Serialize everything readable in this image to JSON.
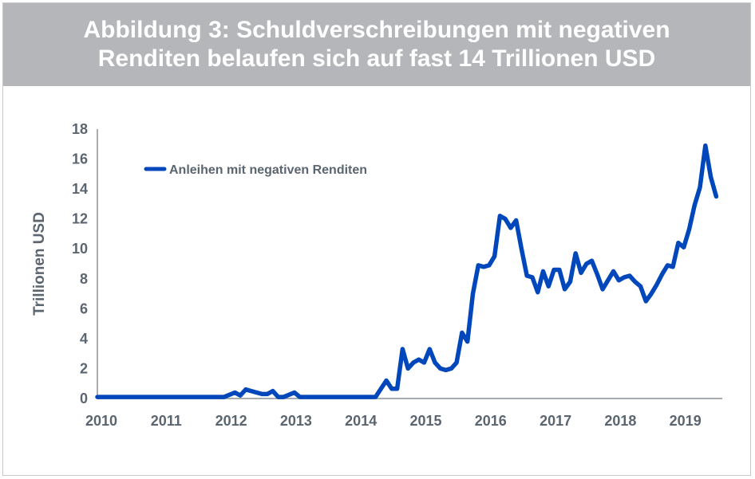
{
  "header": {
    "line1": "Abbildung 3: Schuldverschreibungen mit negativen",
    "line2": "Renditen belaufen sich auf fast 14 Trillionen USD"
  },
  "colors": {
    "line": "#0047bb",
    "header_bg": "#b4b6b9",
    "axis": "#8a9097",
    "text": "#5b6570"
  },
  "chart_data": {
    "type": "line",
    "title": "Abbildung 3: Schuldverschreibungen mit negativen Renditen belaufen sich auf fast 14 Trillionen USD",
    "xlabel": "",
    "ylabel": "Trillionen USD",
    "ylim": [
      0,
      18
    ],
    "yticks": [
      "0",
      "2",
      "4",
      "6",
      "8",
      "10",
      "12",
      "14",
      "16",
      "18"
    ],
    "xlim": [
      "2010-01",
      "2019-12"
    ],
    "xticks": [
      "2010",
      "2011",
      "2012",
      "2013",
      "2014",
      "2015",
      "2016",
      "2017",
      "2018",
      "2019"
    ],
    "grid": false,
    "legend": "top-left",
    "series": [
      {
        "name": "Anleihen mit negativen Renditen",
        "points": [
          [
            "2010-01",
            0.1
          ],
          [
            "2011-12",
            0.1
          ],
          [
            "2012-02",
            0.4
          ],
          [
            "2012-03",
            0.2
          ],
          [
            "2012-04",
            0.6
          ],
          [
            "2012-05",
            0.5
          ],
          [
            "2012-07",
            0.3
          ],
          [
            "2012-08",
            0.3
          ],
          [
            "2012-09",
            0.5
          ],
          [
            "2012-10",
            0.1
          ],
          [
            "2012-11",
            0.1
          ],
          [
            "2013-01",
            0.4
          ],
          [
            "2013-02",
            0.1
          ],
          [
            "2014-04",
            0.1
          ],
          [
            "2014-06",
            1.2
          ],
          [
            "2014-07",
            0.65
          ],
          [
            "2014-08",
            0.65
          ],
          [
            "2014-09",
            3.3
          ],
          [
            "2014-10",
            2.0
          ],
          [
            "2014-11",
            2.4
          ],
          [
            "2014-12",
            2.6
          ],
          [
            "2015-01",
            2.4
          ],
          [
            "2015-02",
            3.3
          ],
          [
            "2015-03",
            2.4
          ],
          [
            "2015-04",
            2.0
          ],
          [
            "2015-05",
            1.9
          ],
          [
            "2015-06",
            2.0
          ],
          [
            "2015-07",
            2.4
          ],
          [
            "2015-08",
            4.4
          ],
          [
            "2015-09",
            3.8
          ],
          [
            "2015-10",
            7.0
          ],
          [
            "2015-11",
            8.9
          ],
          [
            "2015-12",
            8.8
          ],
          [
            "2016-01",
            8.9
          ],
          [
            "2016-02",
            9.5
          ],
          [
            "2016-03",
            12.2
          ],
          [
            "2016-04",
            12.0
          ],
          [
            "2016-05",
            11.4
          ],
          [
            "2016-06",
            11.9
          ],
          [
            "2016-07",
            10.0
          ],
          [
            "2016-08",
            8.2
          ],
          [
            "2016-09",
            8.1
          ],
          [
            "2016-10",
            7.1
          ],
          [
            "2016-11",
            8.5
          ],
          [
            "2016-12",
            7.5
          ],
          [
            "2017-01",
            8.6
          ],
          [
            "2017-02",
            8.6
          ],
          [
            "2017-03",
            7.3
          ],
          [
            "2017-04",
            7.8
          ],
          [
            "2017-05",
            9.7
          ],
          [
            "2017-06",
            8.4
          ],
          [
            "2017-07",
            9.0
          ],
          [
            "2017-08",
            9.2
          ],
          [
            "2017-09",
            8.3
          ],
          [
            "2017-10",
            7.3
          ],
          [
            "2017-11",
            7.9
          ],
          [
            "2017-12",
            8.5
          ],
          [
            "2018-01",
            7.9
          ],
          [
            "2018-02",
            8.1
          ],
          [
            "2018-03",
            8.2
          ],
          [
            "2018-04",
            7.8
          ],
          [
            "2018-05",
            7.5
          ],
          [
            "2018-06",
            6.5
          ],
          [
            "2018-07",
            7.0
          ],
          [
            "2018-08",
            7.6
          ],
          [
            "2018-09",
            8.3
          ],
          [
            "2018-10",
            8.9
          ],
          [
            "2018-11",
            8.8
          ],
          [
            "2018-12",
            10.4
          ],
          [
            "2019-01",
            10.1
          ],
          [
            "2019-02",
            11.3
          ],
          [
            "2019-03",
            12.9
          ],
          [
            "2019-04",
            14.1
          ],
          [
            "2019-05",
            16.9
          ],
          [
            "2019-06",
            14.8
          ],
          [
            "2019-07",
            13.5
          ]
        ]
      }
    ]
  }
}
